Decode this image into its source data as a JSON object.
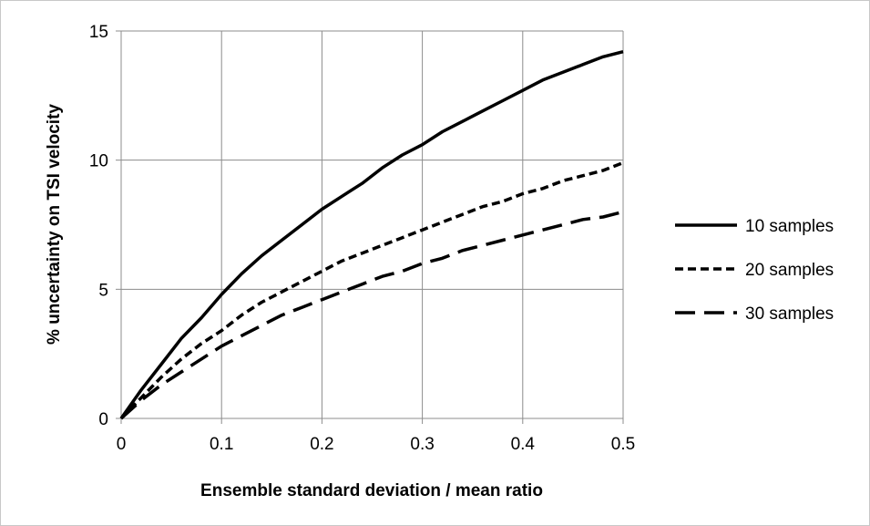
{
  "chart_data": {
    "type": "line",
    "title": "",
    "xlabel": "Ensemble standard deviation / mean ratio",
    "ylabel": "% uncertainty on TSI velocity",
    "xlim": [
      0,
      0.5
    ],
    "ylim": [
      0,
      15
    ],
    "x_ticks": [
      "0",
      "0.1",
      "0.2",
      "0.3",
      "0.4",
      "0.5"
    ],
    "y_ticks": [
      "0",
      "5",
      "10",
      "15"
    ],
    "grid": true,
    "legend_position": "right",
    "x": [
      0,
      0.02,
      0.04,
      0.06,
      0.08,
      0.1,
      0.12,
      0.14,
      0.16,
      0.18,
      0.2,
      0.22,
      0.24,
      0.26,
      0.28,
      0.3,
      0.32,
      0.34,
      0.36,
      0.38,
      0.4,
      0.42,
      0.44,
      0.46,
      0.48,
      0.5
    ],
    "series": [
      {
        "name": "10 samples",
        "style": "solid",
        "values": [
          0,
          1.1,
          2.1,
          3.1,
          3.9,
          4.8,
          5.6,
          6.3,
          6.9,
          7.5,
          8.1,
          8.6,
          9.1,
          9.7,
          10.2,
          10.6,
          11.1,
          11.5,
          11.9,
          12.3,
          12.7,
          13.1,
          13.4,
          13.7,
          14.0,
          14.2
        ]
      },
      {
        "name": "20 samples",
        "style": "short-dash",
        "values": [
          0,
          0.8,
          1.6,
          2.3,
          2.9,
          3.4,
          4.0,
          4.5,
          4.9,
          5.3,
          5.7,
          6.1,
          6.4,
          6.7,
          7.0,
          7.3,
          7.6,
          7.9,
          8.2,
          8.4,
          8.7,
          8.9,
          9.2,
          9.4,
          9.6,
          9.9
        ]
      },
      {
        "name": "30 samples",
        "style": "long-dash",
        "values": [
          0,
          0.7,
          1.3,
          1.8,
          2.3,
          2.8,
          3.2,
          3.6,
          4.0,
          4.3,
          4.6,
          4.9,
          5.2,
          5.5,
          5.7,
          6.0,
          6.2,
          6.5,
          6.7,
          6.9,
          7.1,
          7.3,
          7.5,
          7.7,
          7.8,
          8.0
        ]
      }
    ],
    "colors": {
      "line": "#000000",
      "grid": "#8c8c8c"
    }
  }
}
